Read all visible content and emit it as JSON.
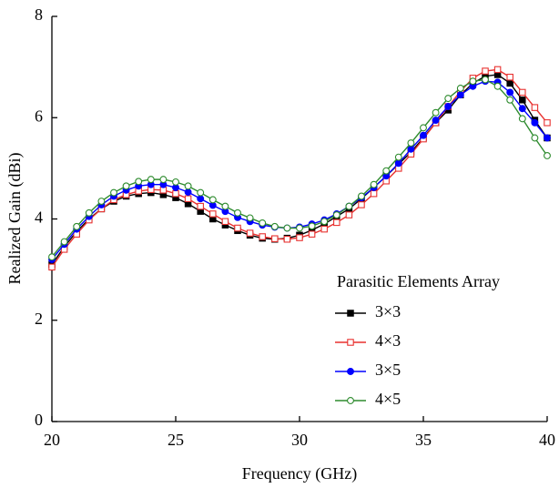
{
  "chart_data": {
    "type": "line",
    "xlabel": "Frequency (GHz)",
    "ylabel": "Realized Gain (dBi)",
    "legend_title": "Parasitic Elements Array",
    "x": [
      20,
      20.5,
      21,
      21.5,
      22,
      22.5,
      23,
      23.5,
      24,
      24.5,
      25,
      25.5,
      26,
      26.5,
      27,
      27.5,
      28,
      28.5,
      29,
      29.5,
      30,
      30.5,
      31,
      31.5,
      32,
      32.5,
      33,
      33.5,
      34,
      34.5,
      35,
      35.5,
      36,
      36.5,
      37,
      37.5,
      38,
      38.5,
      39,
      39.5,
      40
    ],
    "series": [
      {
        "name": "3×3",
        "color": "#000000",
        "marker": "square",
        "filled": true,
        "values": [
          3.1,
          3.45,
          3.75,
          4.0,
          4.2,
          4.35,
          4.45,
          4.5,
          4.52,
          4.48,
          4.42,
          4.3,
          4.15,
          4.0,
          3.88,
          3.77,
          3.68,
          3.62,
          3.6,
          3.62,
          3.68,
          3.78,
          3.9,
          4.05,
          4.2,
          4.4,
          4.62,
          4.85,
          5.08,
          5.32,
          5.6,
          5.9,
          6.15,
          6.45,
          6.68,
          6.82,
          6.85,
          6.68,
          6.35,
          5.95,
          5.6
        ]
      },
      {
        "name": "4×3",
        "color": "#e8312f",
        "marker": "square",
        "filled": false,
        "values": [
          3.05,
          3.4,
          3.7,
          3.98,
          4.2,
          4.38,
          4.48,
          4.55,
          4.58,
          4.57,
          4.5,
          4.4,
          4.25,
          4.1,
          3.95,
          3.82,
          3.72,
          3.65,
          3.61,
          3.6,
          3.63,
          3.7,
          3.8,
          3.93,
          4.08,
          4.28,
          4.5,
          4.75,
          5.0,
          5.28,
          5.58,
          5.9,
          6.22,
          6.52,
          6.78,
          6.92,
          6.95,
          6.8,
          6.5,
          6.2,
          5.9
        ]
      },
      {
        "name": "3×5",
        "color": "#0000ff",
        "marker": "circle",
        "filled": true,
        "values": [
          3.2,
          3.5,
          3.8,
          4.05,
          4.28,
          4.45,
          4.57,
          4.65,
          4.68,
          4.68,
          4.62,
          4.53,
          4.4,
          4.27,
          4.15,
          4.03,
          3.95,
          3.88,
          3.84,
          3.82,
          3.84,
          3.9,
          3.98,
          4.1,
          4.25,
          4.42,
          4.62,
          4.85,
          5.1,
          5.38,
          5.65,
          5.95,
          6.22,
          6.45,
          6.62,
          6.72,
          6.7,
          6.5,
          6.18,
          5.9,
          5.6
        ]
      },
      {
        "name": "4×5",
        "color": "#2e8b2e",
        "marker": "circle",
        "filled": false,
        "values": [
          3.25,
          3.55,
          3.85,
          4.12,
          4.35,
          4.52,
          4.65,
          4.74,
          4.78,
          4.78,
          4.73,
          4.65,
          4.52,
          4.38,
          4.25,
          4.12,
          4.02,
          3.92,
          3.85,
          3.82,
          3.82,
          3.86,
          3.95,
          4.08,
          4.25,
          4.45,
          4.68,
          4.95,
          5.22,
          5.5,
          5.8,
          6.1,
          6.38,
          6.58,
          6.72,
          6.75,
          6.62,
          6.35,
          5.98,
          5.6,
          5.25
        ]
      }
    ],
    "xlim": [
      20,
      40
    ],
    "xticks": [
      20,
      25,
      30,
      35,
      40
    ],
    "ylim": [
      0,
      8
    ],
    "yticks": [
      0,
      2,
      4,
      6,
      8
    ],
    "legend": "lower right"
  }
}
